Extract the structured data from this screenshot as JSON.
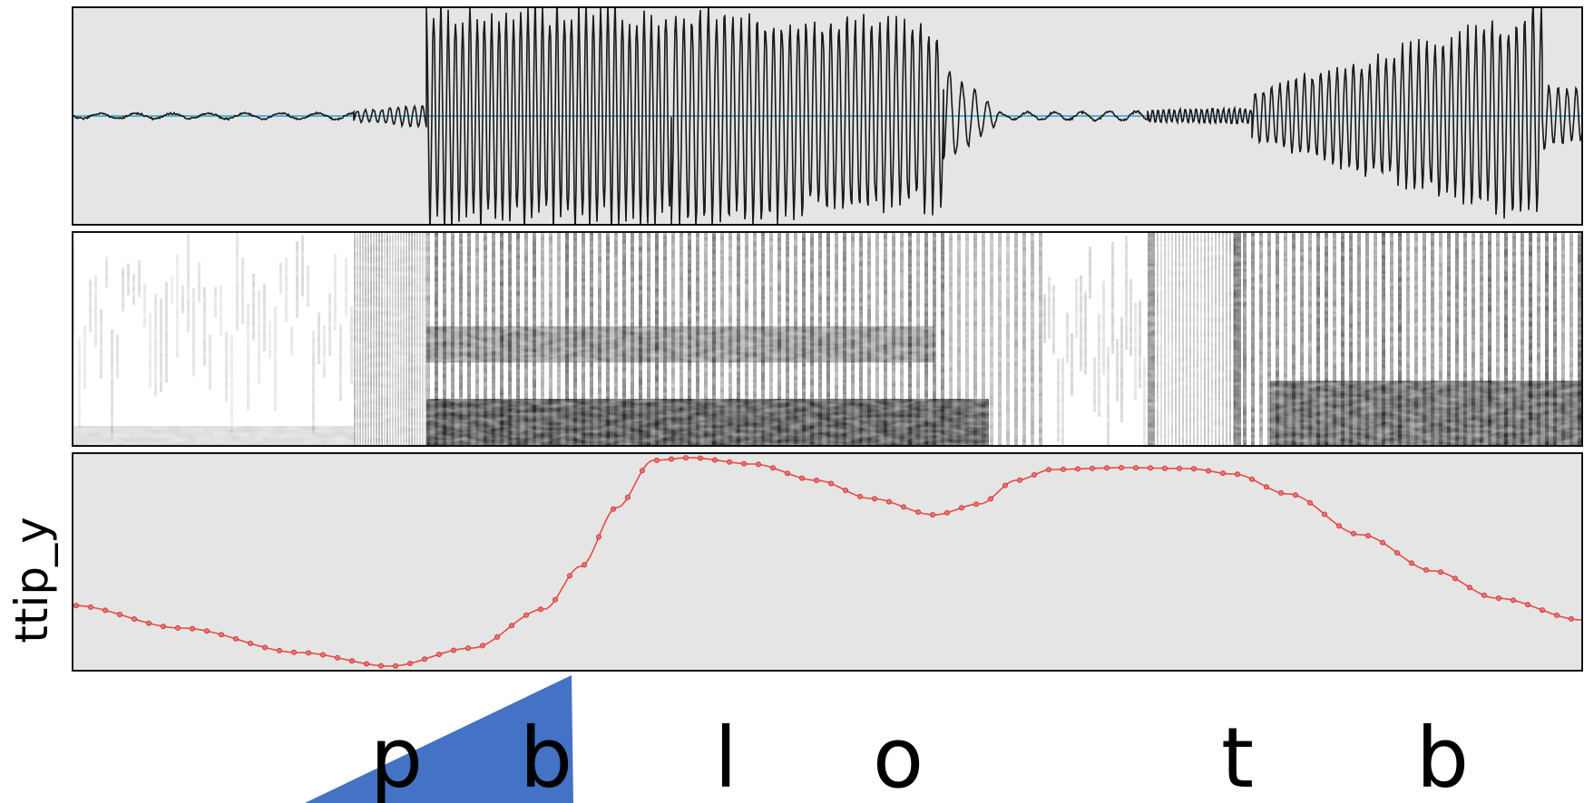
{
  "figure": {
    "panels": [
      "waveform",
      "spectrogram",
      "ttip_y trajectory"
    ],
    "ylabel": "ttip_y",
    "phones": [
      "p",
      "b",
      "l",
      "o",
      "t",
      "b"
    ],
    "colors": {
      "panel_bg": "#e5e5e5",
      "waveform": "#1a1a1a",
      "baseline": "#5aaee0",
      "trajectory": "#e84a4a",
      "wedge": "#4472c4"
    }
  }
}
